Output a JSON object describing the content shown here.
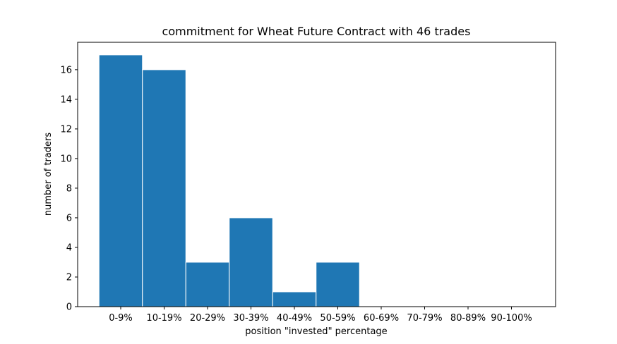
{
  "chart_data": {
    "type": "bar",
    "title": "commitment for Wheat Future Contract with 46 trades",
    "xlabel": "position \"invested\" percentage",
    "ylabel": "number of traders",
    "categories": [
      "0-9%",
      "10-19%",
      "20-29%",
      "30-39%",
      "40-49%",
      "50-59%",
      "60-69%",
      "70-79%",
      "80-89%",
      "90-100%"
    ],
    "values": [
      17,
      16,
      3,
      6,
      1,
      3,
      0,
      0,
      0,
      0
    ],
    "yticks": [
      0,
      2,
      4,
      6,
      8,
      10,
      12,
      14,
      16
    ],
    "ylim": [
      0,
      17.85
    ],
    "grid": false,
    "colors": {
      "bar": "#1f77b4",
      "bar_edge": "#ffffff"
    }
  }
}
